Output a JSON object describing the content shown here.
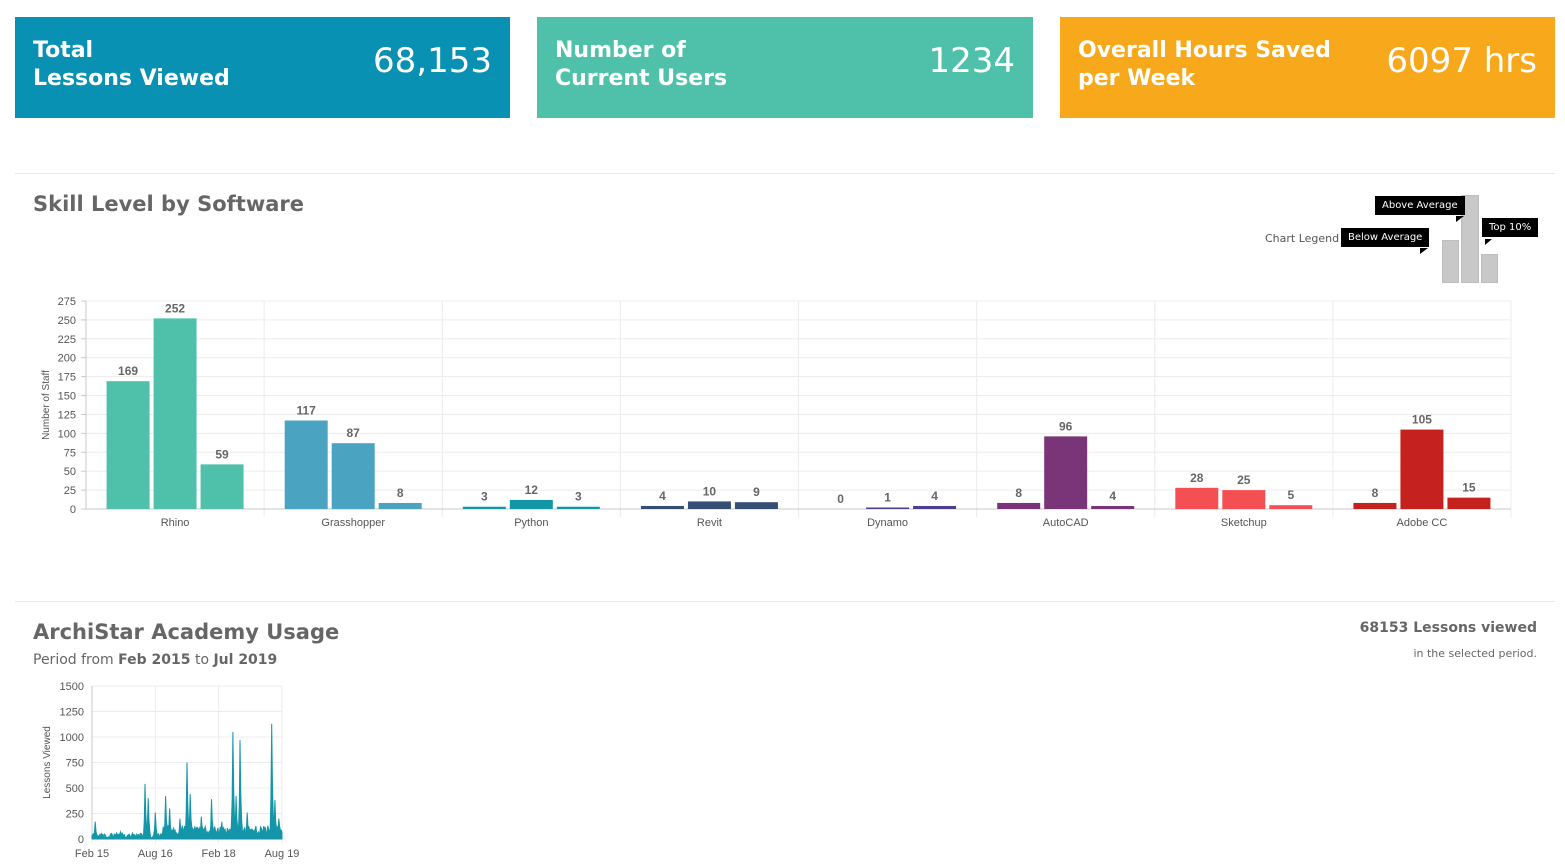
{
  "stats": [
    {
      "label_line1": "Total",
      "label_line2": "Lessons Viewed",
      "value": "68,153",
      "color": "#0891b2"
    },
    {
      "label_line1": "Number of",
      "label_line2": "Current Users",
      "value": "1234",
      "color": "#4fc1ab"
    },
    {
      "label_line1": "Overall Hours Saved",
      "label_line2": "per Week",
      "value": "6097 hrs",
      "color": "#f7a81b"
    }
  ],
  "skill_section": {
    "title": "Skill Level by Software",
    "legend_label": "Chart Legend",
    "legend_below": "Below Average",
    "legend_above": "Above Average",
    "legend_top": "Top 10%"
  },
  "usage_section": {
    "title": "ArchiStar Academy Usage",
    "period_prefix": "Period from",
    "period_start": "Feb 2015",
    "period_to": "to",
    "period_end": "Jul 2019",
    "lessons_count": "68153 Lessons viewed",
    "lessons_sub": "in the selected period."
  },
  "chart_data": [
    {
      "type": "bar",
      "title": "",
      "ylabel": "Number of Staff",
      "xlabel": "",
      "ylim": [
        0,
        275
      ],
      "yticks": [
        0,
        25,
        50,
        75,
        100,
        125,
        150,
        175,
        200,
        225,
        250,
        275
      ],
      "grid": true,
      "categories": [
        "Rhino",
        "Grasshopper",
        "Python",
        "Revit",
        "Dynamo",
        "AutoCAD",
        "Sketchup",
        "Adobe CC"
      ],
      "series_roles": [
        "Below Average",
        "Above Average",
        "Top 10%"
      ],
      "values": [
        [
          169,
          252,
          59
        ],
        [
          117,
          87,
          8
        ],
        [
          3,
          12,
          3
        ],
        [
          4,
          10,
          9
        ],
        [
          0,
          1,
          4
        ],
        [
          8,
          96,
          4
        ],
        [
          28,
          25,
          5
        ],
        [
          8,
          105,
          15
        ]
      ],
      "colors": [
        "#4fc1ab",
        "#4aa3c0",
        "#1296a8",
        "#344e75",
        "#4f3e8f",
        "#7a3578",
        "#f45054",
        "#c4211f"
      ]
    },
    {
      "type": "area",
      "title": "",
      "ylabel": "Lessons Viewed",
      "xlabel": "",
      "ylim": [
        0,
        1500
      ],
      "yticks": [
        0,
        250,
        500,
        750,
        1000,
        1250,
        1500
      ],
      "xticks": [
        "Feb 15",
        "Aug 16",
        "Feb 18",
        "Aug 19"
      ],
      "xtick_index": [
        0,
        18,
        36,
        54
      ],
      "x_count": 55,
      "grid": true,
      "color": "#1296a8",
      "peaks": [
        {
          "i": 1,
          "v": 170
        },
        {
          "i": 8,
          "v": 70
        },
        {
          "i": 15,
          "v": 540
        },
        {
          "i": 16,
          "v": 400
        },
        {
          "i": 18,
          "v": 260
        },
        {
          "i": 21,
          "v": 420
        },
        {
          "i": 22,
          "v": 300
        },
        {
          "i": 25,
          "v": 200
        },
        {
          "i": 27,
          "v": 750
        },
        {
          "i": 28,
          "v": 440
        },
        {
          "i": 31,
          "v": 220
        },
        {
          "i": 34,
          "v": 390
        },
        {
          "i": 37,
          "v": 170
        },
        {
          "i": 40,
          "v": 1050
        },
        {
          "i": 41,
          "v": 420
        },
        {
          "i": 42,
          "v": 970
        },
        {
          "i": 44,
          "v": 260
        },
        {
          "i": 48,
          "v": 120
        },
        {
          "i": 51,
          "v": 1130
        },
        {
          "i": 52,
          "v": 380
        },
        {
          "i": 53,
          "v": 200
        }
      ]
    }
  ]
}
